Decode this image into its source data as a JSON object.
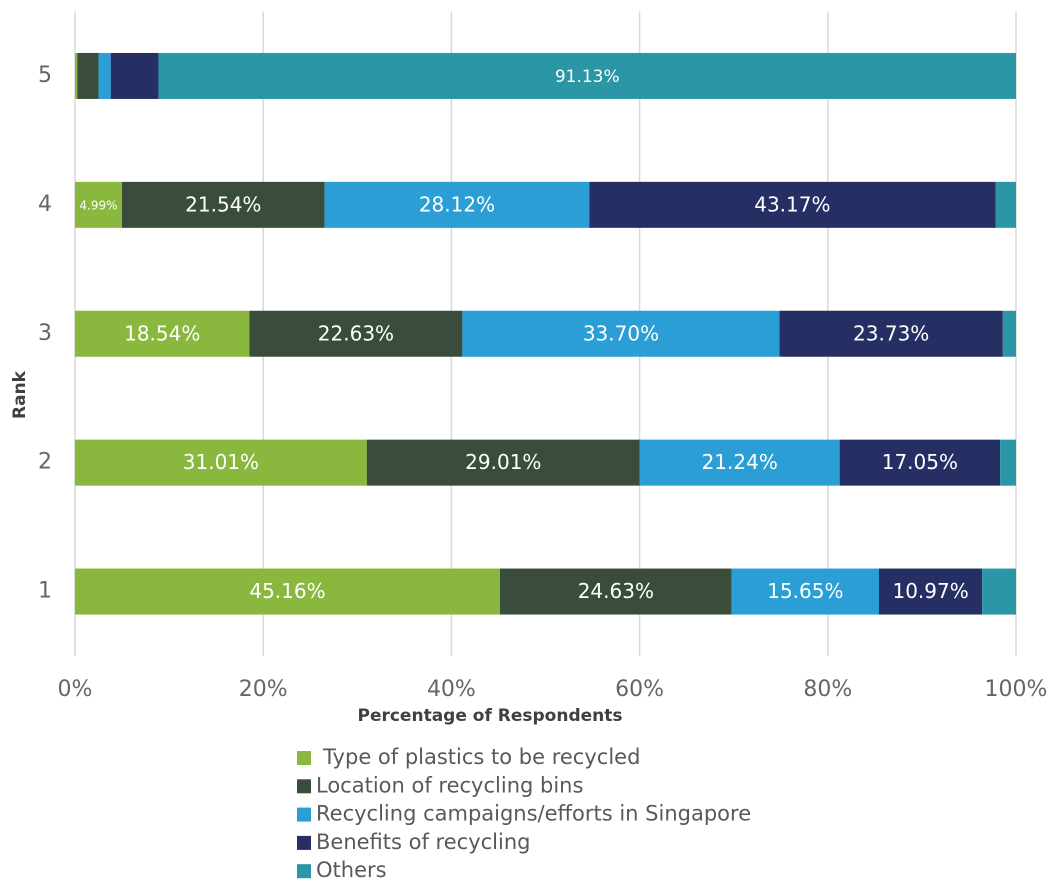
{
  "chart_data": {
    "type": "stacked_barh",
    "xlabel": "Percentage of Respondents",
    "ylabel": "Rank",
    "categories": [
      "1",
      "2",
      "3",
      "4",
      "5"
    ],
    "series": [
      {
        "name": "Type of plastics to be recycled",
        "color": "#8ab83f",
        "values": [
          45.16,
          31.01,
          18.54,
          4.99,
          0.25
        ],
        "value_labels": [
          "45.16%",
          "31.01%",
          "18.54%",
          "4.99%",
          null
        ]
      },
      {
        "name": "Location of recycling bins",
        "color": "#3a4d3c",
        "values": [
          24.63,
          29.01,
          22.63,
          21.54,
          2.25
        ],
        "value_labels": [
          "24.63%",
          "29.01%",
          "22.63%",
          "21.54%",
          null
        ]
      },
      {
        "name": "Recycling campaigns/efforts in Singapore",
        "color": "#2b9ed6",
        "values": [
          15.65,
          21.24,
          33.7,
          28.12,
          1.3
        ],
        "value_labels": [
          "15.65%",
          "21.24%",
          "33.70%",
          "28.12%",
          null
        ]
      },
      {
        "name": "Benefits of recycling",
        "color": "#262f63",
        "values": [
          10.97,
          17.05,
          23.73,
          43.17,
          5.07
        ],
        "value_labels": [
          "10.97%",
          "17.05%",
          "23.73%",
          "43.17%",
          null
        ]
      },
      {
        "name": "Others",
        "color": "#2a96a6",
        "values": [
          3.59,
          1.69,
          1.4,
          2.18,
          91.13
        ],
        "value_labels": [
          null,
          null,
          null,
          null,
          "91.13%"
        ]
      }
    ],
    "xlim": [
      0,
      100
    ],
    "xticks": [
      {
        "value": 0,
        "label": "0%"
      },
      {
        "value": 20,
        "label": "20%"
      },
      {
        "value": 40,
        "label": "40%"
      },
      {
        "value": 60,
        "label": "60%"
      },
      {
        "value": 80,
        "label": "80%"
      },
      {
        "value": 100,
        "label": "100%"
      }
    ],
    "grid": true,
    "legend": "bottom"
  }
}
